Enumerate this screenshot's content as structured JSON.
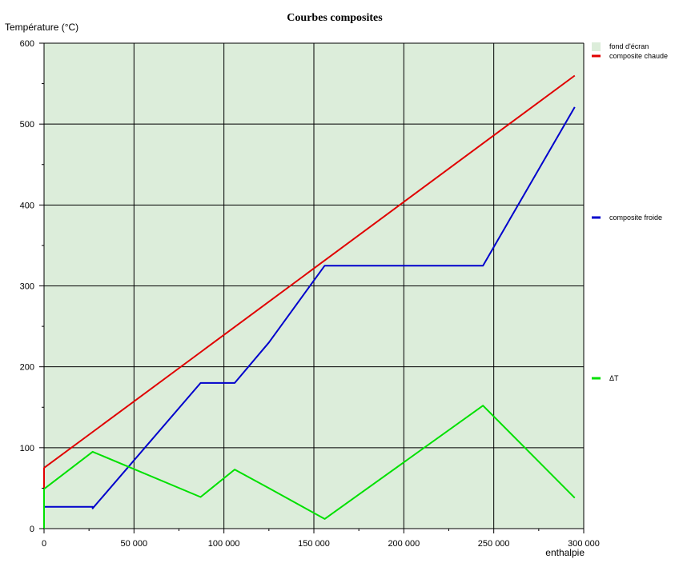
{
  "chart_data": {
    "type": "line",
    "title": "Courbes composites",
    "xlabel": "enthalpie",
    "ylabel": "Température (°C)",
    "xlim": [
      0,
      300000
    ],
    "ylim": [
      0,
      600
    ],
    "x_ticks": [
      0,
      50000,
      100000,
      150000,
      200000,
      250000,
      300000
    ],
    "x_tick_labels": [
      "0",
      "50 000",
      "100 000",
      "150 000",
      "200 000",
      "250 000",
      "300 000"
    ],
    "y_ticks": [
      0,
      100,
      200,
      300,
      400,
      500,
      600
    ],
    "y_tick_labels": [
      "0",
      "100",
      "200",
      "300",
      "400",
      "500",
      "600"
    ],
    "grid": true,
    "background_color": "#dcedda",
    "legend_position": "right",
    "legend": [
      {
        "label": "fond d'écran",
        "color": "#dcedda",
        "kind": "swatch"
      },
      {
        "label": "composite chaude",
        "color": "#e00000",
        "kind": "line"
      },
      {
        "label": "composite froide",
        "color": "#0000cc",
        "kind": "line"
      },
      {
        "label": "ΔT",
        "color": "#00e000",
        "kind": "line"
      }
    ],
    "series": [
      {
        "name": "composite chaude",
        "color": "#e00000",
        "points": [
          [
            0,
            2
          ],
          [
            0,
            75
          ],
          [
            295000,
            560
          ]
        ]
      },
      {
        "name": "composite froide",
        "color": "#0000cc",
        "points": [
          [
            0,
            27
          ],
          [
            27000,
            27
          ],
          [
            27000,
            25
          ],
          [
            87000,
            180
          ],
          [
            106000,
            180
          ],
          [
            125000,
            230
          ],
          [
            156000,
            325
          ],
          [
            244000,
            325
          ],
          [
            295000,
            521
          ]
        ]
      },
      {
        "name": "ΔT",
        "color": "#00e000",
        "points": [
          [
            0,
            0
          ],
          [
            0,
            49
          ],
          [
            27000,
            95
          ],
          [
            87000,
            39
          ],
          [
            106000,
            73
          ],
          [
            125000,
            50
          ],
          [
            156000,
            12
          ],
          [
            244000,
            152
          ],
          [
            295000,
            38
          ]
        ]
      }
    ]
  }
}
